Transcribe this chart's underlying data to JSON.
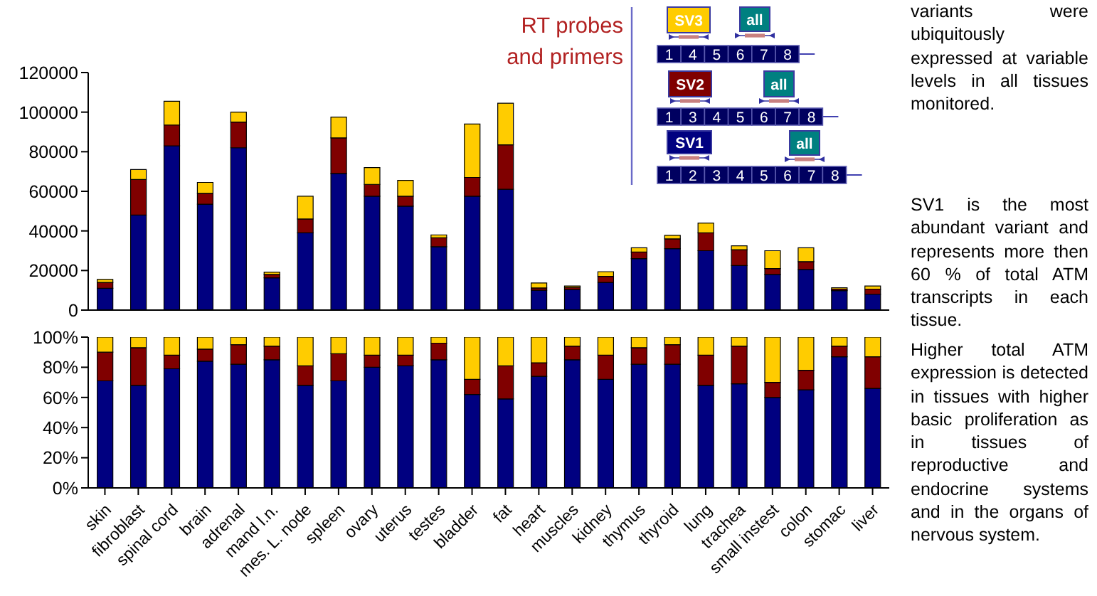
{
  "chart_data": [
    {
      "type": "bar",
      "stacked": true,
      "categories": [
        null,
        null,
        null,
        null,
        null,
        null,
        null,
        null,
        null,
        null,
        null,
        null,
        null,
        null,
        null,
        null,
        null,
        null,
        null,
        null,
        null,
        null,
        null,
        null
      ],
      "series": [
        {
          "color": "#000080",
          "values": [
            11000,
            48000,
            83000,
            53500,
            82000,
            16300,
            39000,
            69000,
            57500,
            52500,
            32000,
            57500,
            61000,
            10000,
            10400,
            14000,
            26000,
            31000,
            30000,
            22500,
            18000,
            20500,
            9800,
            8000
          ]
        },
        {
          "color": "#800000",
          "values": [
            3000,
            18000,
            10500,
            5500,
            13000,
            1700,
            7000,
            18000,
            6000,
            5000,
            4500,
            9500,
            22500,
            1200,
            1100,
            3000,
            3300,
            5000,
            9000,
            8000,
            3000,
            4000,
            800,
            2600
          ]
        },
        {
          "color": "#ffcc00",
          "values": [
            1500,
            5000,
            12000,
            5500,
            5000,
            1200,
            11500,
            10500,
            8500,
            8000,
            1500,
            27000,
            21000,
            2500,
            700,
            2400,
            2200,
            1800,
            5000,
            2000,
            9000,
            7000,
            700,
            1600
          ]
        }
      ],
      "ylim": [
        0,
        120000
      ],
      "yticks": [
        0,
        20000,
        40000,
        60000,
        80000,
        100000,
        120000
      ],
      "tick_labels": "y"
    },
    {
      "type": "bar",
      "stacked": true,
      "categories": [
        "skin",
        "fibroblast",
        "spinal cord",
        "brain",
        "adrenal",
        "mand l.n.",
        "mes. L. node",
        "spleen",
        "ovary",
        "uterus",
        "testes",
        "bladder",
        "fat",
        "heart",
        "muscles",
        "kidney",
        "thymus",
        "thyroid",
        "lung",
        "trachea",
        "small instest",
        "colon",
        "stomac",
        "liver"
      ],
      "series": [
        {
          "color": "#000080",
          "values": [
            71,
            68,
            79,
            84,
            82,
            85,
            68,
            71,
            80,
            81,
            85,
            62,
            59,
            74,
            85,
            72,
            82,
            82,
            68,
            69,
            60,
            65,
            87,
            66
          ]
        },
        {
          "color": "#800000",
          "values": [
            19,
            25,
            9,
            8,
            13,
            9,
            13,
            18,
            8,
            7,
            11,
            10,
            22,
            9,
            9,
            16,
            11,
            13,
            20,
            25,
            10,
            13,
            7,
            21
          ]
        },
        {
          "color": "#ffcc00",
          "values": [
            10,
            7,
            12,
            8,
            5,
            6,
            19,
            11,
            12,
            12,
            4,
            28,
            19,
            17,
            6,
            12,
            7,
            5,
            12,
            6,
            30,
            22,
            6,
            13
          ]
        }
      ],
      "ylim": [
        0,
        100
      ],
      "yticks": [
        {
          "value": 0,
          "label": "0%"
        },
        {
          "value": 20,
          "label": "20%"
        },
        {
          "value": 40,
          "label": "40%"
        },
        {
          "value": 60,
          "label": "60%"
        },
        {
          "value": 80,
          "label": "80%"
        },
        {
          "value": 100,
          "label": "100%"
        }
      ]
    },
    {
      "type": "other",
      "annotations": [
        "RT probes and primers",
        "SV3",
        "all",
        "1 4 5 6 7 8",
        "SV2",
        "all",
        "1 3 4 5 6 7 8",
        "SV1",
        "all",
        "1 2 3 4 5 6 7 8",
        "variants were ubiquitously expressed at variable levels in all tissues monitored.",
        "SV1 is the most abundant variant and represents more then 60 % of total ATM transcripts in each tissue.",
        "Higher total ATM expression is detected in tissues with higher basic proliferation as in tissues of reproductive and endocrine systems and in the organs of nervous system."
      ]
    }
  ]
}
